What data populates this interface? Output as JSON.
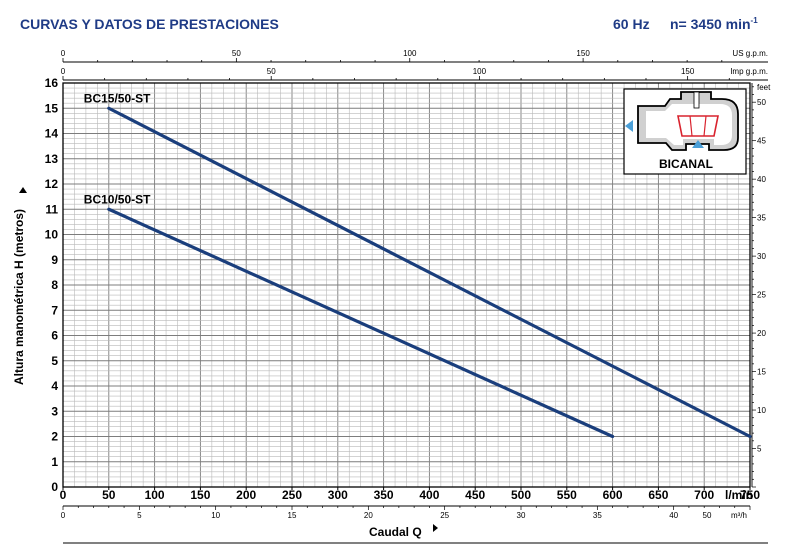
{
  "header": {
    "title": "CURVAS Y DATOS DE PRESTACIONES",
    "freq": "60 Hz",
    "speed": "n= 3450 min",
    "speed_sup": "-1"
  },
  "top_axes": {
    "us_gpm": {
      "label": "US g.p.m.",
      "ticks": [
        0,
        50,
        100,
        150
      ]
    },
    "imp_gpm": {
      "label": "Imp g.p.m.",
      "ticks": [
        0,
        50,
        100,
        150
      ]
    }
  },
  "right_axis": {
    "label": "feet",
    "ticks": [
      5,
      10,
      15,
      20,
      25,
      30,
      35,
      40,
      45,
      50
    ]
  },
  "bottom_secondary": {
    "label": "m³/h",
    "ticks": [
      0,
      5,
      10,
      15,
      20,
      25,
      30,
      35,
      40,
      45,
      50
    ]
  },
  "inset": {
    "label": "BICANAL"
  },
  "colors": {
    "curve": "#1a3e7c",
    "header": "#1f3b86",
    "grid": "#b9b9b9",
    "icon_arrow": "#4a9fd8",
    "impeller": "#d9232e"
  },
  "chart_data": {
    "type": "line",
    "xlabel": "Caudal Q",
    "ylabel": "Altura manométrica H (metros)",
    "x_unit": "l/min",
    "xlim": [
      0,
      750
    ],
    "ylim": [
      0,
      16
    ],
    "x_ticks": [
      0,
      50,
      100,
      150,
      200,
      250,
      300,
      350,
      400,
      450,
      500,
      550,
      600,
      650,
      700,
      750
    ],
    "y_ticks": [
      0,
      1,
      2,
      3,
      4,
      5,
      6,
      7,
      8,
      9,
      10,
      11,
      12,
      13,
      14,
      15,
      16
    ],
    "grid": true,
    "series": [
      {
        "name": "BC15/50-ST",
        "x": [
          50,
          750
        ],
        "y": [
          15,
          2
        ]
      },
      {
        "name": "BC10/50-ST",
        "x": [
          50,
          600
        ],
        "y": [
          11,
          2
        ]
      }
    ]
  }
}
